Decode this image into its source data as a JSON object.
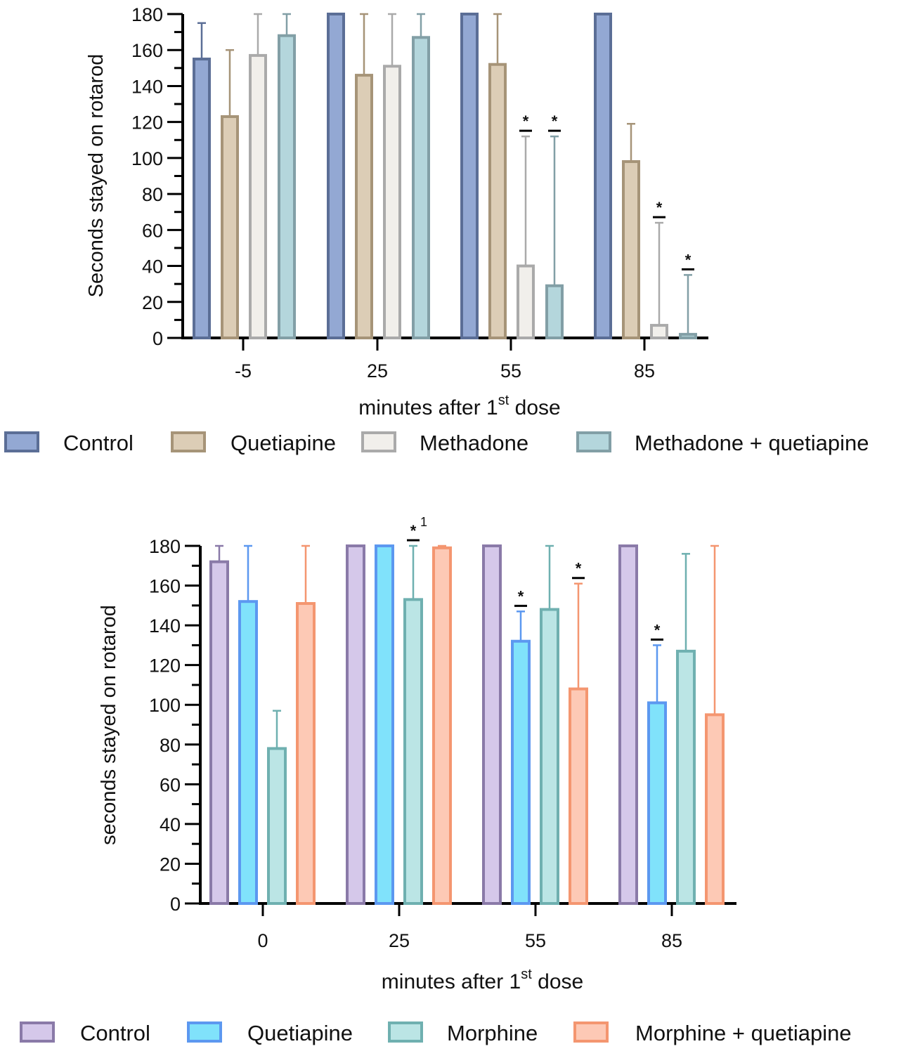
{
  "chart_data": [
    {
      "type": "bar",
      "categories": [
        "-5",
        "25",
        "55",
        "85"
      ],
      "ylabel": "Seconds stayed on rotarod",
      "xlabel": "minutes after 1",
      "xlabel_sup": "st",
      "xlabel_tail": " dose",
      "ylim": [
        0,
        180
      ],
      "yticks": [
        "0",
        "20",
        "40",
        "60",
        "80",
        "100",
        "120",
        "140",
        "160",
        "180"
      ],
      "legend_position": "bottom",
      "series": [
        {
          "name": "Control",
          "values": [
            155,
            180,
            180,
            180
          ],
          "err_top": [
            175,
            180,
            180,
            180
          ],
          "fill": "#93a8d3",
          "stroke": "#5b6e96"
        },
        {
          "name": "Quetiapine",
          "values": [
            123,
            146,
            152,
            98
          ],
          "err_top": [
            160,
            180,
            180,
            119
          ],
          "fill": "#dccdb6",
          "stroke": "#a69478"
        },
        {
          "name": "Methadone",
          "values": [
            157,
            151,
            40,
            7
          ],
          "err_top": [
            180,
            180,
            112,
            64
          ],
          "fill": "#f1efeb",
          "stroke": "#aaaaaa"
        },
        {
          "name": "Methadone + quetiapine",
          "values": [
            168,
            167,
            29,
            2
          ],
          "err_top": [
            180,
            180,
            112,
            35
          ],
          "fill": "#b4d6dc",
          "stroke": "#829fa6"
        }
      ],
      "annotations": [
        {
          "group": 2,
          "series": 2,
          "label": "*"
        },
        {
          "group": 2,
          "series": 3,
          "label": "*"
        },
        {
          "group": 3,
          "series": 2,
          "label": "*"
        },
        {
          "group": 3,
          "series": 3,
          "label": "*"
        }
      ]
    },
    {
      "type": "bar",
      "categories": [
        "0",
        "25",
        "55",
        "85"
      ],
      "ylabel": "seconds stayed on rotarod",
      "xlabel": "minutes after 1",
      "xlabel_sup": "st",
      "xlabel_tail": " dose",
      "ylim": [
        0,
        180
      ],
      "yticks": [
        "0",
        "20",
        "40",
        "60",
        "80",
        "100",
        "120",
        "140",
        "160",
        "180"
      ],
      "legend_position": "bottom",
      "series": [
        {
          "name": "Control",
          "values": [
            172,
            180,
            180,
            180
          ],
          "err_top": [
            180,
            180,
            180,
            180
          ],
          "fill": "#d5c8ea",
          "stroke": "#8a7aa8"
        },
        {
          "name": "Quetiapine",
          "values": [
            152,
            180,
            132,
            101
          ],
          "err_top": [
            180,
            180,
            147,
            130
          ],
          "fill": "#80e2fb",
          "stroke": "#5c98f0"
        },
        {
          "name": "Morphine",
          "values": [
            78,
            153,
            148,
            127
          ],
          "err_top": [
            97,
            180,
            180,
            176
          ],
          "fill": "#bbe5e5",
          "stroke": "#6fb0b0"
        },
        {
          "name": "Morphine + quetiapine",
          "values": [
            151,
            179,
            108,
            95
          ],
          "err_top": [
            180,
            180,
            161,
            180
          ],
          "fill": "#fdc9b5",
          "stroke": "#f49670"
        }
      ],
      "annotations": [
        {
          "group": 1,
          "series": 2,
          "label": "*",
          "note": "1"
        },
        {
          "group": 2,
          "series": 1,
          "label": "*"
        },
        {
          "group": 2,
          "series": 3,
          "label": "*"
        },
        {
          "group": 3,
          "series": 1,
          "label": "*"
        }
      ]
    }
  ]
}
